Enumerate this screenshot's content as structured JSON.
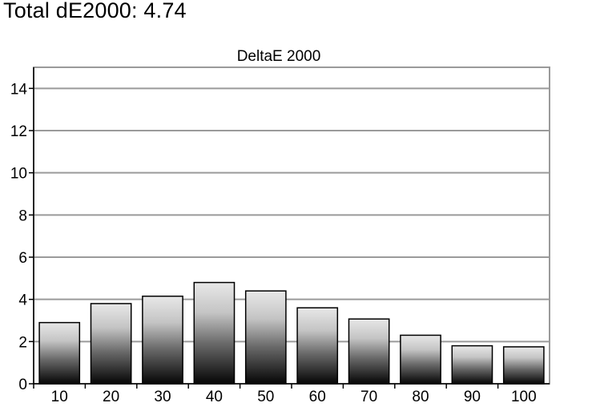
{
  "header": {
    "title": "Total dE2000: 4.74"
  },
  "chart_data": {
    "type": "bar",
    "title": "DeltaE 2000",
    "xlabel": "",
    "ylabel": "",
    "categories": [
      "10",
      "20",
      "30",
      "40",
      "50",
      "60",
      "70",
      "80",
      "90",
      "100"
    ],
    "values": [
      2.9,
      3.8,
      4.15,
      4.8,
      4.4,
      3.6,
      3.07,
      2.3,
      1.8,
      1.75
    ],
    "ylim": [
      0,
      15
    ],
    "yticks": [
      0,
      2,
      4,
      6,
      8,
      10,
      12,
      14
    ],
    "grid": true,
    "legend": "none"
  }
}
